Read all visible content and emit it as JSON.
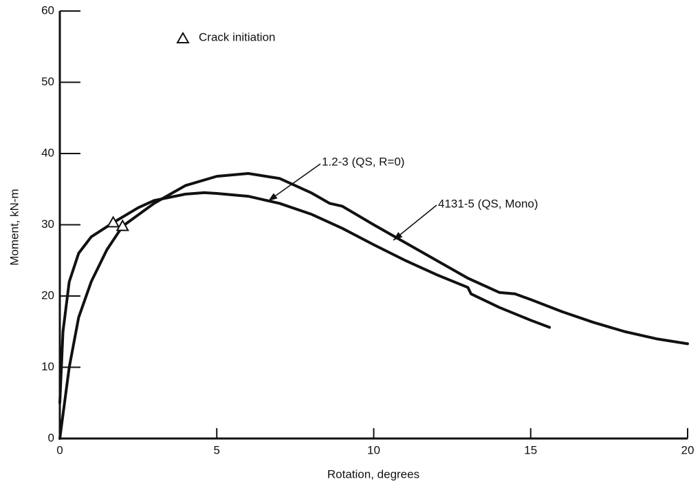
{
  "chart_data": {
    "type": "line",
    "x_label": "Rotation, degrees",
    "y_label": "Moment, kN-m",
    "xlim": [
      0,
      20
    ],
    "ylim": [
      0,
      60
    ],
    "xticks": [
      0,
      5,
      10,
      15,
      20
    ],
    "yticks": [
      0,
      10,
      20,
      30,
      40,
      50,
      60
    ],
    "grid": false,
    "series": [
      {
        "name": "1.2-3 (QS, R=0)",
        "color": "#111111",
        "x": [
          0,
          0.1,
          0.3,
          0.6,
          1,
          1.7,
          2.5,
          3,
          4,
          4.6,
          5,
          6,
          7,
          8,
          9,
          10,
          11,
          12,
          13,
          13.1,
          14,
          15,
          15.6
        ],
        "values": [
          5,
          15,
          22,
          26,
          28.3,
          30.3,
          32.4,
          33.4,
          34.3,
          34.5,
          34.4,
          34,
          33,
          31.5,
          29.5,
          27.2,
          25,
          23,
          21.2,
          20.3,
          18.4,
          16.6,
          15.6
        ]
      },
      {
        "name": "4131-5 (QS, Mono)",
        "color": "#111111",
        "x": [
          0,
          0.3,
          0.6,
          1,
          1.5,
          2,
          3,
          4,
          5,
          6,
          7,
          8,
          8.6,
          9,
          10,
          11,
          12,
          13,
          14,
          14.5,
          15,
          16,
          17,
          18,
          19,
          20
        ],
        "values": [
          0,
          10,
          17,
          22,
          26.5,
          29.8,
          33,
          35.5,
          36.8,
          37.2,
          36.5,
          34.5,
          33,
          32.6,
          30,
          27.5,
          25,
          22.5,
          20.5,
          20.3,
          19.5,
          17.8,
          16.3,
          15,
          14,
          13.3
        ]
      }
    ],
    "crack_initiation": {
      "label": "Crack initiation",
      "x": [
        1.7,
        2
      ],
      "values": [
        30.3,
        29.8
      ]
    }
  }
}
